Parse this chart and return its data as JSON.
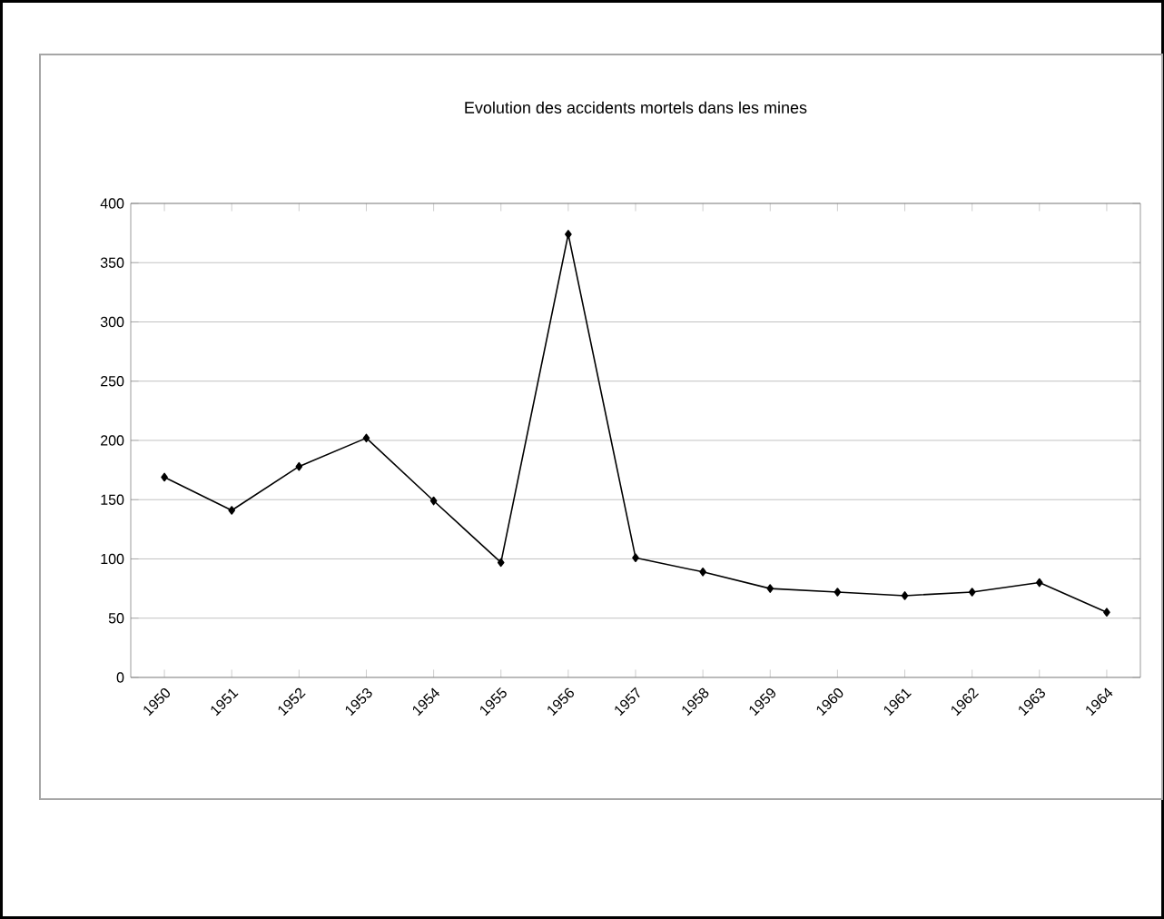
{
  "chart_data": {
    "type": "line",
    "title": "Evolution des accidents mortels dans les mines",
    "categories": [
      "1950",
      "1951",
      "1952",
      "1953",
      "1954",
      "1955",
      "1956",
      "1957",
      "1958",
      "1959",
      "1960",
      "1961",
      "1962",
      "1963",
      "1964"
    ],
    "values": [
      169,
      141,
      178,
      202,
      149,
      97,
      374,
      101,
      89,
      75,
      72,
      69,
      72,
      80,
      55
    ],
    "color": "#000000",
    "marker": "diamond",
    "grid": "y",
    "ylim": [
      0,
      400
    ],
    "yticks": [
      0,
      50,
      100,
      150,
      200,
      250,
      300,
      350,
      400
    ]
  }
}
